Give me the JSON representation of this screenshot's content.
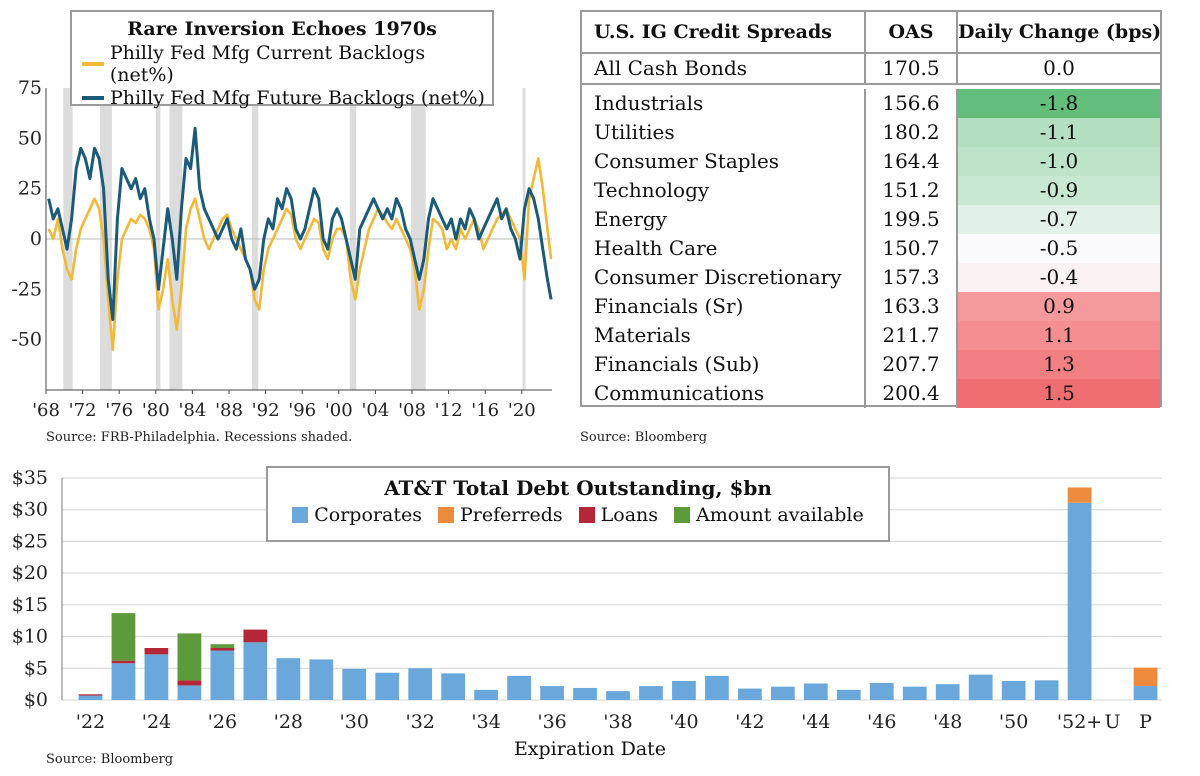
{
  "chart_data": [
    {
      "type": "line",
      "title": "Rare Inversion Echoes 1970s",
      "source": "Source: FRB-Philadelphia. Recessions shaded.",
      "x_range": [
        1968,
        2023.3
      ],
      "ylim": [
        -75,
        75
      ],
      "y_ticks": [
        75,
        50,
        25,
        0,
        -25,
        -50
      ],
      "x_tick_labels": [
        "'68",
        "'72",
        "'76",
        "'80",
        "'84",
        "'88",
        "'92",
        "'96",
        "'00",
        "'04",
        "'08",
        "'12",
        "'16",
        "'20"
      ],
      "x_tick_values": [
        1968,
        1972,
        1976,
        1980,
        1984,
        1988,
        1992,
        1996,
        2000,
        2004,
        2008,
        2012,
        2016,
        2020
      ],
      "recessions": [
        [
          1969.9,
          1970.9
        ],
        [
          1973.9,
          1975.2
        ],
        [
          1980.0,
          1980.5
        ],
        [
          1981.5,
          1982.9
        ],
        [
          1990.5,
          1991.2
        ],
        [
          2001.2,
          2001.9
        ],
        [
          2007.9,
          2009.5
        ],
        [
          2020.1,
          2020.4
        ]
      ],
      "series": [
        {
          "name": "Philly Fed Mfg Current Backlogs (net%)",
          "color": "#f0b93a",
          "x": [
            1968.3,
            1968.8,
            1969.3,
            1969.8,
            1970.3,
            1970.8,
            1971.3,
            1971.8,
            1972.3,
            1972.8,
            1973.3,
            1973.8,
            1974.3,
            1974.8,
            1975.3,
            1975.8,
            1976.3,
            1976.8,
            1977.3,
            1977.8,
            1978.3,
            1978.8,
            1979.3,
            1979.8,
            1980.3,
            1980.8,
            1981.3,
            1981.8,
            1982.3,
            1982.8,
            1983.3,
            1983.8,
            1984.3,
            1984.8,
            1985.3,
            1985.8,
            1986.3,
            1986.8,
            1987.3,
            1987.8,
            1988.3,
            1988.8,
            1989.3,
            1989.8,
            1990.3,
            1990.8,
            1991.3,
            1991.8,
            1992.3,
            1992.8,
            1993.3,
            1993.8,
            1994.3,
            1994.8,
            1995.3,
            1995.8,
            1996.3,
            1996.8,
            1997.3,
            1997.8,
            1998.3,
            1998.8,
            1999.3,
            1999.8,
            2000.3,
            2000.8,
            2001.3,
            2001.8,
            2002.3,
            2002.8,
            2003.3,
            2003.8,
            2004.3,
            2004.8,
            2005.3,
            2005.8,
            2006.3,
            2006.8,
            2007.3,
            2007.8,
            2008.3,
            2008.8,
            2009.3,
            2009.8,
            2010.3,
            2010.8,
            2011.3,
            2011.8,
            2012.3,
            2012.8,
            2013.3,
            2013.8,
            2014.3,
            2014.8,
            2015.3,
            2015.8,
            2016.3,
            2016.8,
            2017.3,
            2017.8,
            2018.3,
            2018.8,
            2019.3,
            2019.8,
            2020.3,
            2020.8,
            2021.3,
            2021.8,
            2022.3,
            2022.8,
            2023.2
          ],
          "y": [
            5,
            0,
            10,
            -5,
            -15,
            -20,
            -5,
            5,
            10,
            15,
            20,
            15,
            0,
            -30,
            -55,
            -20,
            0,
            5,
            10,
            8,
            12,
            10,
            5,
            -5,
            -35,
            -25,
            -10,
            -30,
            -45,
            -25,
            5,
            15,
            20,
            10,
            0,
            -5,
            0,
            5,
            10,
            12,
            5,
            0,
            -5,
            -10,
            -15,
            -30,
            -35,
            -15,
            -5,
            0,
            5,
            10,
            15,
            12,
            0,
            -5,
            0,
            5,
            10,
            8,
            -5,
            -10,
            0,
            5,
            5,
            0,
            -20,
            -30,
            -15,
            -5,
            5,
            10,
            15,
            12,
            8,
            5,
            10,
            5,
            0,
            -5,
            -15,
            -35,
            -25,
            -5,
            10,
            8,
            5,
            -5,
            0,
            -5,
            5,
            0,
            5,
            10,
            5,
            -5,
            0,
            5,
            10,
            12,
            15,
            10,
            5,
            0,
            -20,
            20,
            30,
            40,
            25,
            5,
            -10
          ]
        },
        {
          "name": "Philly Fed Mfg Future Backlogs (net%)",
          "color": "#1b5a78",
          "x": [
            1968.3,
            1968.8,
            1969.3,
            1969.8,
            1970.3,
            1970.8,
            1971.3,
            1971.8,
            1972.3,
            1972.8,
            1973.3,
            1973.8,
            1974.3,
            1974.8,
            1975.3,
            1975.8,
            1976.3,
            1976.8,
            1977.3,
            1977.8,
            1978.3,
            1978.8,
            1979.3,
            1979.8,
            1980.3,
            1980.8,
            1981.3,
            1981.8,
            1982.3,
            1982.8,
            1983.3,
            1983.8,
            1984.3,
            1984.8,
            1985.3,
            1985.8,
            1986.3,
            1986.8,
            1987.3,
            1987.8,
            1988.3,
            1988.8,
            1989.3,
            1989.8,
            1990.3,
            1990.8,
            1991.3,
            1991.8,
            1992.3,
            1992.8,
            1993.3,
            1993.8,
            1994.3,
            1994.8,
            1995.3,
            1995.8,
            1996.3,
            1996.8,
            1997.3,
            1997.8,
            1998.3,
            1998.8,
            1999.3,
            1999.8,
            2000.3,
            2000.8,
            2001.3,
            2001.8,
            2002.3,
            2002.8,
            2003.3,
            2003.8,
            2004.3,
            2004.8,
            2005.3,
            2005.8,
            2006.3,
            2006.8,
            2007.3,
            2007.8,
            2008.3,
            2008.8,
            2009.3,
            2009.8,
            2010.3,
            2010.8,
            2011.3,
            2011.8,
            2012.3,
            2012.8,
            2013.3,
            2013.8,
            2014.3,
            2014.8,
            2015.3,
            2015.8,
            2016.3,
            2016.8,
            2017.3,
            2017.8,
            2018.3,
            2018.8,
            2019.3,
            2019.8,
            2020.3,
            2020.8,
            2021.3,
            2021.8,
            2022.3,
            2022.8,
            2023.2
          ],
          "y": [
            20,
            10,
            15,
            5,
            -5,
            10,
            35,
            45,
            40,
            30,
            45,
            40,
            25,
            -20,
            -40,
            10,
            35,
            30,
            25,
            30,
            20,
            25,
            10,
            0,
            -25,
            -5,
            15,
            0,
            -20,
            15,
            40,
            35,
            55,
            25,
            15,
            10,
            5,
            0,
            5,
            10,
            0,
            -5,
            5,
            -10,
            -15,
            -25,
            -20,
            0,
            10,
            5,
            20,
            15,
            25,
            20,
            5,
            0,
            5,
            15,
            25,
            20,
            0,
            -5,
            10,
            15,
            10,
            0,
            -10,
            -20,
            5,
            10,
            15,
            20,
            15,
            10,
            15,
            10,
            20,
            15,
            5,
            0,
            -10,
            -20,
            -10,
            10,
            20,
            15,
            10,
            5,
            10,
            0,
            10,
            5,
            15,
            10,
            0,
            5,
            10,
            15,
            20,
            10,
            15,
            5,
            0,
            -10,
            15,
            25,
            20,
            10,
            -5,
            -20,
            -30
          ]
        }
      ]
    },
    {
      "type": "table",
      "columns": [
        "U.S. IG Credit Spreads",
        "OAS",
        "Daily Change (bps)"
      ],
      "source": "Source: Bloomberg",
      "rows": [
        {
          "name": "All Cash Bonds",
          "oas": "170.5",
          "chg": "0.0",
          "color": "#ffffff"
        },
        {
          "name": "Industrials",
          "oas": "156.6",
          "chg": "-1.8",
          "color": "#63be7b"
        },
        {
          "name": "Utilities",
          "oas": "180.2",
          "chg": "-1.1",
          "color": "#b4dfc0"
        },
        {
          "name": "Consumer Staples",
          "oas": "164.4",
          "chg": "-1.0",
          "color": "#bde3c8"
        },
        {
          "name": "Technology",
          "oas": "151.2",
          "chg": "-0.9",
          "color": "#c8e8d1"
        },
        {
          "name": "Energy",
          "oas": "199.5",
          "chg": "-0.7",
          "color": "#e3f2e8"
        },
        {
          "name": "Health Care",
          "oas": "150.7",
          "chg": "-0.5",
          "color": "#fbfbfd"
        },
        {
          "name": "Consumer Discretionary",
          "oas": "157.3",
          "chg": "-0.4",
          "color": "#fbf2f4"
        },
        {
          "name": "Financials (Sr)",
          "oas": "163.3",
          "chg": "0.9",
          "color": "#f59a9c"
        },
        {
          "name": "Materials",
          "oas": "211.7",
          "chg": "1.1",
          "color": "#f48e91"
        },
        {
          "name": "Financials (Sub)",
          "oas": "207.7",
          "chg": "1.3",
          "color": "#f27f82"
        },
        {
          "name": "Communications",
          "oas": "200.4",
          "chg": "1.5",
          "color": "#f06d71"
        }
      ]
    },
    {
      "type": "bar",
      "title": "AT&T Total Debt Outstanding, $bn",
      "xlabel": "Expiration Date",
      "source": "Source: Bloomberg",
      "ylim": [
        0,
        35
      ],
      "y_ticks": [
        "$0",
        "$5",
        "$10",
        "$15",
        "$20",
        "$25",
        "$30",
        "$35"
      ],
      "x_tick_labels": [
        {
          "label": "'22",
          "at": 0
        },
        {
          "label": "'24",
          "at": 2
        },
        {
          "label": "'26",
          "at": 4
        },
        {
          "label": "'28",
          "at": 6
        },
        {
          "label": "'30",
          "at": 8
        },
        {
          "label": "'32",
          "at": 10
        },
        {
          "label": "'34",
          "at": 12
        },
        {
          "label": "'36",
          "at": 14
        },
        {
          "label": "'38",
          "at": 16
        },
        {
          "label": "'40",
          "at": 18
        },
        {
          "label": "'42",
          "at": 20
        },
        {
          "label": "'44",
          "at": 22
        },
        {
          "label": "'46",
          "at": 24
        },
        {
          "label": "'48",
          "at": 26
        },
        {
          "label": "'50",
          "at": 28
        },
        {
          "label": "'52+",
          "at": 30
        },
        {
          "label": "U",
          "at": 31
        },
        {
          "label": "P",
          "at": 32
        }
      ],
      "categories": [
        "2022",
        "2023",
        "2024",
        "2025",
        "2026",
        "2027",
        "2028",
        "2029",
        "2030",
        "2031",
        "2032",
        "2033",
        "2034",
        "2035",
        "2036",
        "2037",
        "2038",
        "2039",
        "2040",
        "2041",
        "2042",
        "2043",
        "2044",
        "2045",
        "2046",
        "2047",
        "2048",
        "2049",
        "2050",
        "2051",
        "2052+",
        "U",
        "P"
      ],
      "series": [
        {
          "name": "Corporates",
          "color": "#6aa8dc",
          "values": [
            0.7,
            5.8,
            7.2,
            2.3,
            7.8,
            9.1,
            6.6,
            6.4,
            4.9,
            4.3,
            5.0,
            4.2,
            1.6,
            3.8,
            2.2,
            1.9,
            1.4,
            2.2,
            3.0,
            3.8,
            1.8,
            2.1,
            2.6,
            1.6,
            2.7,
            2.1,
            2.5,
            4.0,
            3.0,
            3.1,
            31.1,
            0,
            2.2
          ]
        },
        {
          "name": "Preferreds",
          "color": "#ee8a3c",
          "values": [
            0,
            0,
            0,
            0,
            0,
            0,
            0,
            0,
            0,
            0,
            0,
            0,
            0,
            0,
            0,
            0,
            0,
            0,
            0,
            0,
            0,
            0,
            0,
            0,
            0,
            0,
            0,
            0,
            0,
            0,
            2.4,
            0,
            2.9
          ]
        },
        {
          "name": "Loans",
          "color": "#b52638",
          "values": [
            0.2,
            0.4,
            1.0,
            0.8,
            0.4,
            2.0,
            0,
            0,
            0,
            0,
            0,
            0,
            0,
            0,
            0,
            0,
            0,
            0,
            0,
            0,
            0,
            0,
            0,
            0,
            0,
            0,
            0,
            0,
            0,
            0,
            0,
            0,
            0
          ]
        },
        {
          "name": "Amount available",
          "color": "#5c9a3c",
          "values": [
            0,
            7.5,
            0,
            7.4,
            0.6,
            0,
            0,
            0,
            0,
            0,
            0,
            0,
            0,
            0,
            0,
            0,
            0,
            0,
            0,
            0,
            0,
            0,
            0,
            0,
            0,
            0,
            0,
            0,
            0,
            0,
            0,
            0,
            0
          ]
        }
      ]
    }
  ]
}
